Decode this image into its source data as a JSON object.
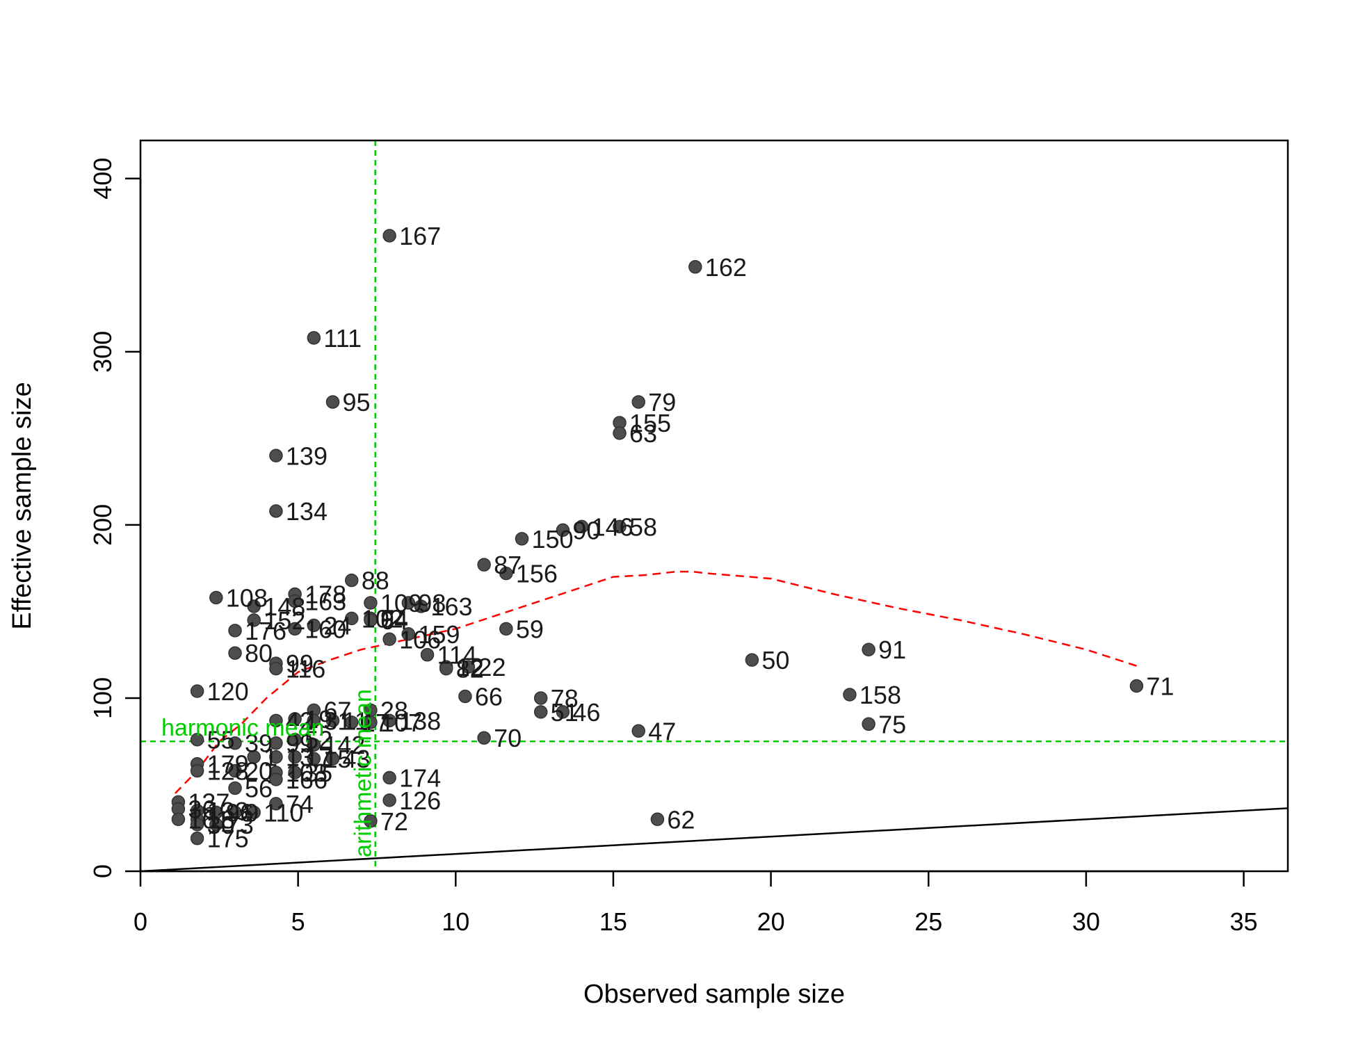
{
  "chart_data": {
    "type": "scatter",
    "xlabel": "Observed sample size",
    "ylabel": "Effective sample size",
    "xlim": [
      0,
      36.4
    ],
    "ylim": [
      0,
      422
    ],
    "x_ticks": [
      0,
      5,
      10,
      15,
      20,
      25,
      30,
      35
    ],
    "y_ticks": [
      0,
      100,
      200,
      300,
      400
    ],
    "colors": {
      "points": "#4d4d4d",
      "smooth": "#ff0000",
      "reference": "#00cc00",
      "identity": "#000000"
    },
    "reference_lines": [
      {
        "name": "harmonic mean",
        "orientation": "horizontal",
        "value": 75
      },
      {
        "name": "arithmetic mean",
        "orientation": "vertical",
        "value": 7.45
      }
    ],
    "identity_line": {
      "slope": 1,
      "intercept": 0
    },
    "smooth_curve": [
      [
        1.1,
        45
      ],
      [
        1.8,
        58
      ],
      [
        2.5,
        75
      ],
      [
        3.2,
        85
      ],
      [
        4,
        100
      ],
      [
        5,
        115
      ],
      [
        6,
        122
      ],
      [
        7,
        128
      ],
      [
        8,
        132
      ],
      [
        9,
        136
      ],
      [
        10,
        140
      ],
      [
        11,
        146
      ],
      [
        12,
        152
      ],
      [
        13,
        158
      ],
      [
        14,
        164
      ],
      [
        15,
        170
      ],
      [
        16,
        171
      ],
      [
        17,
        173
      ],
      [
        17.5,
        173
      ],
      [
        18,
        172
      ],
      [
        20,
        169
      ],
      [
        22,
        160
      ],
      [
        24,
        152
      ],
      [
        26,
        145
      ],
      [
        28,
        137
      ],
      [
        30,
        128
      ],
      [
        31.7,
        118
      ]
    ],
    "points": [
      {
        "x": 7.9,
        "y": 367,
        "label": "167"
      },
      {
        "x": 17.6,
        "y": 349,
        "label": "162"
      },
      {
        "x": 5.5,
        "y": 308,
        "label": "111"
      },
      {
        "x": 6.1,
        "y": 271,
        "label": "95"
      },
      {
        "x": 15.8,
        "y": 271,
        "label": "79"
      },
      {
        "x": 15.2,
        "y": 259,
        "label": "155"
      },
      {
        "x": 15.2,
        "y": 253,
        "label": "63"
      },
      {
        "x": 4.3,
        "y": 240,
        "label": "139"
      },
      {
        "x": 4.3,
        "y": 208,
        "label": "134"
      },
      {
        "x": 12.1,
        "y": 192,
        "label": "150"
      },
      {
        "x": 13.4,
        "y": 197,
        "label": "90"
      },
      {
        "x": 14,
        "y": 199,
        "label": "146"
      },
      {
        "x": 15.2,
        "y": 199,
        "label": "58"
      },
      {
        "x": 10.9,
        "y": 177,
        "label": "87"
      },
      {
        "x": 11.6,
        "y": 172,
        "label": "156"
      },
      {
        "x": 6.7,
        "y": 168,
        "label": "88"
      },
      {
        "x": 4.9,
        "y": 160,
        "label": "178"
      },
      {
        "x": 4.9,
        "y": 156,
        "label": "163"
      },
      {
        "x": 2.4,
        "y": 158,
        "label": "108"
      },
      {
        "x": 3.6,
        "y": 153,
        "label": "148"
      },
      {
        "x": 7.3,
        "y": 155,
        "label": "109"
      },
      {
        "x": 8.5,
        "y": 155,
        "label": "98"
      },
      {
        "x": 8.9,
        "y": 153,
        "label": "163"
      },
      {
        "x": 3.6,
        "y": 145,
        "label": "152"
      },
      {
        "x": 5.5,
        "y": 142,
        "label": "24"
      },
      {
        "x": 6.7,
        "y": 146,
        "label": "102"
      },
      {
        "x": 7.3,
        "y": 146,
        "label": "94"
      },
      {
        "x": 7.3,
        "y": 145,
        "label": "64"
      },
      {
        "x": 3,
        "y": 139,
        "label": "176"
      },
      {
        "x": 4.9,
        "y": 140,
        "label": "160"
      },
      {
        "x": 8.5,
        "y": 137,
        "label": "159"
      },
      {
        "x": 7.9,
        "y": 134,
        "label": "106"
      },
      {
        "x": 11.6,
        "y": 140,
        "label": "59"
      },
      {
        "x": 3,
        "y": 126,
        "label": "80"
      },
      {
        "x": 9.1,
        "y": 125,
        "label": "114"
      },
      {
        "x": 4.3,
        "y": 120,
        "label": "99"
      },
      {
        "x": 4.3,
        "y": 117,
        "label": "116"
      },
      {
        "x": 9.7,
        "y": 118,
        "label": "12"
      },
      {
        "x": 9.7,
        "y": 117,
        "label": "82"
      },
      {
        "x": 10.4,
        "y": 118,
        "label": "22"
      },
      {
        "x": 19.4,
        "y": 122,
        "label": "50"
      },
      {
        "x": 23.1,
        "y": 128,
        "label": "91"
      },
      {
        "x": 31.6,
        "y": 107,
        "label": "71"
      },
      {
        "x": 1.8,
        "y": 104,
        "label": "120"
      },
      {
        "x": 10.3,
        "y": 101,
        "label": "66"
      },
      {
        "x": 12.7,
        "y": 100,
        "label": "78"
      },
      {
        "x": 22.5,
        "y": 102,
        "label": "158"
      },
      {
        "x": 12.7,
        "y": 92,
        "label": "51"
      },
      {
        "x": 13.4,
        "y": 92,
        "label": "46"
      },
      {
        "x": 5.5,
        "y": 93,
        "label": "67"
      },
      {
        "x": 7.3,
        "y": 93,
        "label": "28"
      },
      {
        "x": 7.9,
        "y": 87,
        "label": "138"
      },
      {
        "x": 4.3,
        "y": 87,
        "label": "42"
      },
      {
        "x": 4.9,
        "y": 88,
        "label": "19"
      },
      {
        "x": 5.5,
        "y": 87,
        "label": "31"
      },
      {
        "x": 6.1,
        "y": 87,
        "label": "11"
      },
      {
        "x": 6.7,
        "y": 86,
        "label": "17"
      },
      {
        "x": 7.3,
        "y": 86,
        "label": "107"
      },
      {
        "x": 15.8,
        "y": 81,
        "label": "47"
      },
      {
        "x": 23.1,
        "y": 85,
        "label": "75"
      },
      {
        "x": 10.9,
        "y": 77,
        "label": "70"
      },
      {
        "x": 1.8,
        "y": 76,
        "label": "55"
      },
      {
        "x": 3,
        "y": 74,
        "label": "39"
      },
      {
        "x": 4.3,
        "y": 74,
        "label": "99"
      },
      {
        "x": 4.9,
        "y": 76,
        "label": "52"
      },
      {
        "x": 5.5,
        "y": 73,
        "label": "142"
      },
      {
        "x": 1.8,
        "y": 62,
        "label": "179"
      },
      {
        "x": 3.6,
        "y": 66,
        "label": "1"
      },
      {
        "x": 4.3,
        "y": 66,
        "label": "13"
      },
      {
        "x": 4.9,
        "y": 66,
        "label": "17"
      },
      {
        "x": 5.5,
        "y": 65,
        "label": "15"
      },
      {
        "x": 6.1,
        "y": 65,
        "label": "43"
      },
      {
        "x": 1.8,
        "y": 58,
        "label": "128"
      },
      {
        "x": 3,
        "y": 58,
        "label": "20"
      },
      {
        "x": 4.3,
        "y": 57,
        "label": "103"
      },
      {
        "x": 4.9,
        "y": 57,
        "label": "35"
      },
      {
        "x": 4.3,
        "y": 53,
        "label": "166"
      },
      {
        "x": 7.9,
        "y": 54,
        "label": "174"
      },
      {
        "x": 3,
        "y": 48,
        "label": "56"
      },
      {
        "x": 7.9,
        "y": 41,
        "label": "126"
      },
      {
        "x": 1.2,
        "y": 40,
        "label": "137"
      },
      {
        "x": 4.3,
        "y": 39,
        "label": "74"
      },
      {
        "x": 1.2,
        "y": 36,
        "label": "36"
      },
      {
        "x": 1.8,
        "y": 35,
        "label": "133"
      },
      {
        "x": 2.4,
        "y": 34,
        "label": "96"
      },
      {
        "x": 3,
        "y": 34,
        "label": "9"
      },
      {
        "x": 3.6,
        "y": 34,
        "label": "110"
      },
      {
        "x": 1.2,
        "y": 30,
        "label": "161"
      },
      {
        "x": 1.8,
        "y": 30,
        "label": "18"
      },
      {
        "x": 1.8,
        "y": 27,
        "label": "30"
      },
      {
        "x": 2.4,
        "y": 27,
        "label": "73"
      },
      {
        "x": 7.3,
        "y": 29,
        "label": "72"
      },
      {
        "x": 16.4,
        "y": 30,
        "label": "62"
      },
      {
        "x": 1.8,
        "y": 19,
        "label": "175"
      }
    ]
  }
}
